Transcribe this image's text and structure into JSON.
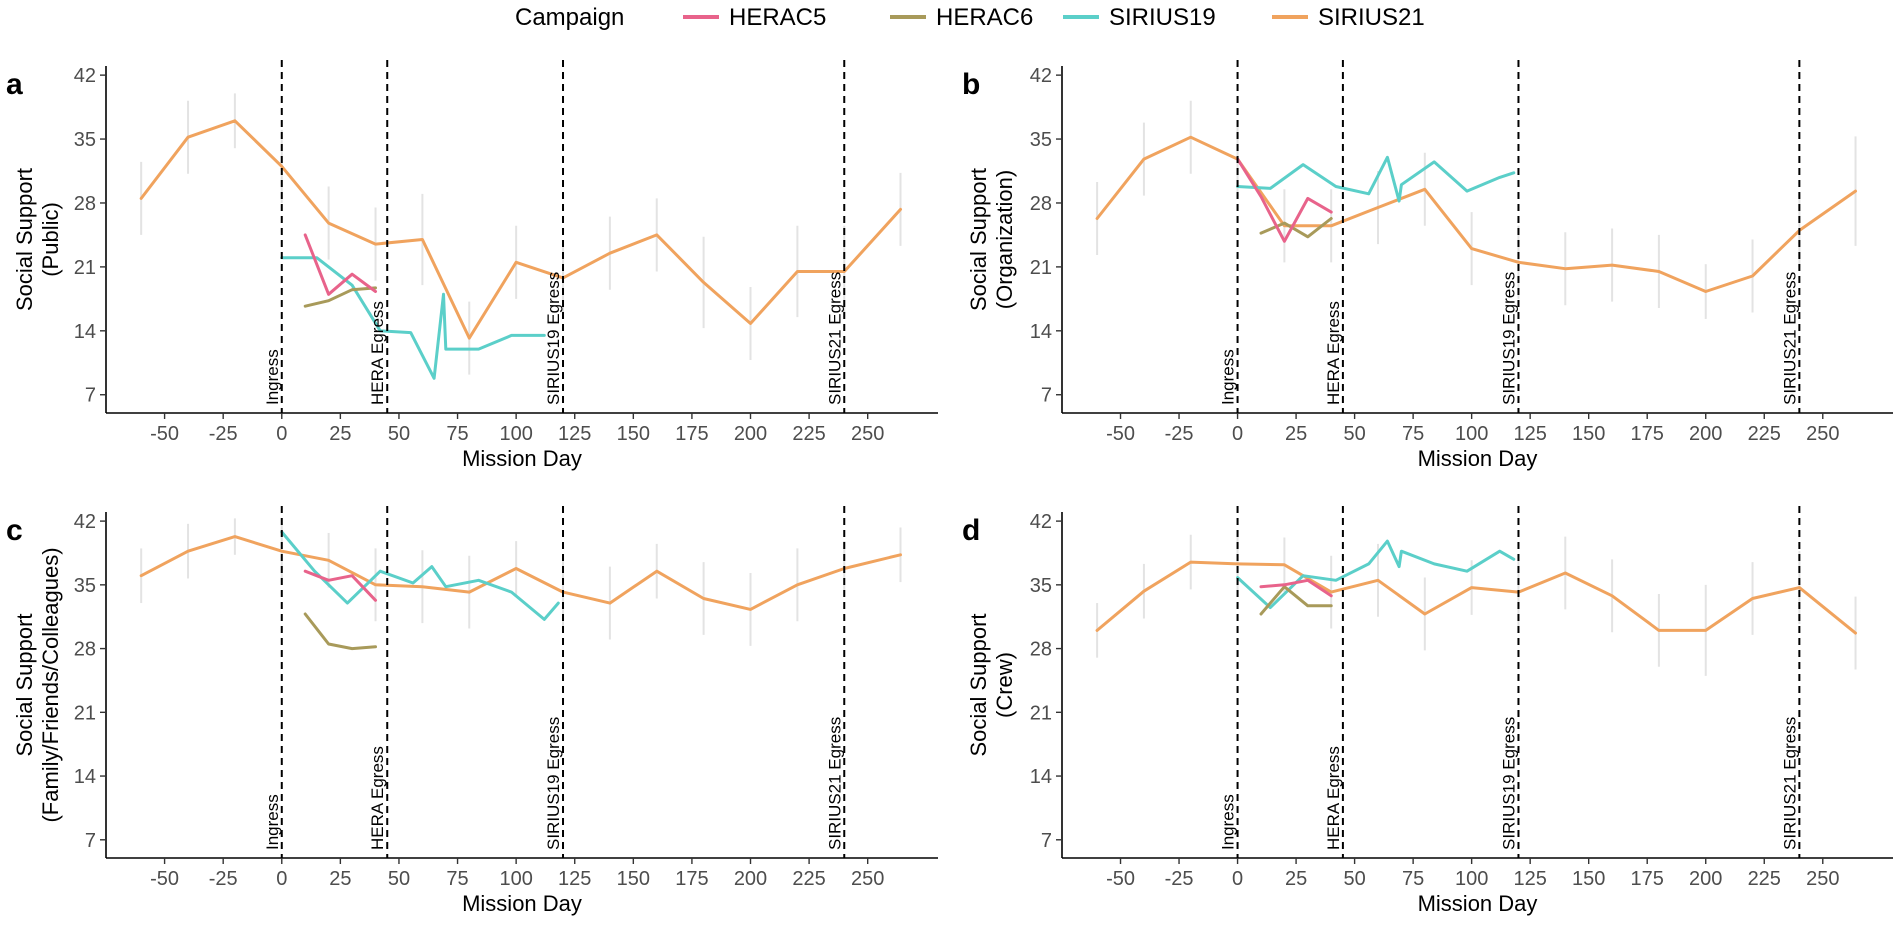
{
  "legend": {
    "title": "Campaign",
    "entries": [
      {
        "name": "HERAC5",
        "color": "#E8638B"
      },
      {
        "name": "HERAC6",
        "color": "#A89A5A"
      },
      {
        "name": "SIRIUS19",
        "color": "#5BCFC9"
      },
      {
        "name": "SIRIUS21",
        "color": "#F0A35E"
      }
    ]
  },
  "chart_data": [
    {
      "type": "line",
      "panel": "a",
      "title": "",
      "xlabel": "Mission Day",
      "ylabel": [
        "Social Support",
        "(Public)"
      ],
      "xlim": [
        -75,
        280
      ],
      "ylim": [
        5,
        43
      ],
      "xticks": [
        -50,
        -25,
        0,
        25,
        50,
        75,
        100,
        125,
        150,
        175,
        200,
        225,
        250
      ],
      "yticks": [
        7,
        14,
        21,
        28,
        35,
        42
      ],
      "vlines": [
        {
          "x": 0,
          "label": "Ingress"
        },
        {
          "x": 45,
          "label": "HERA Egress"
        },
        {
          "x": 120,
          "label": "SIRIUS19 Egress"
        },
        {
          "x": 240,
          "label": "SIRIUS21 Egress"
        }
      ],
      "series": [
        {
          "name": "SIRIUS21",
          "x": [
            -60,
            -40,
            -20,
            0,
            20,
            40,
            60,
            80,
            100,
            120,
            140,
            160,
            180,
            200,
            220,
            240,
            264
          ],
          "y": [
            28.5,
            35.2,
            37,
            32,
            25.8,
            23.5,
            24,
            13.2,
            21.5,
            19.8,
            22.5,
            24.5,
            19.3,
            14.8,
            20.5,
            20.5,
            27.3
          ],
          "err": [
            4,
            4,
            3,
            4,
            4,
            4,
            5,
            4,
            4,
            4,
            4,
            4,
            5,
            4,
            5,
            5,
            4
          ]
        },
        {
          "name": "SIRIUS19",
          "x": [
            0,
            15,
            30,
            42,
            55,
            65,
            69,
            70,
            84,
            98,
            112
          ],
          "y": [
            22,
            22,
            19,
            14,
            13.8,
            8.8,
            18,
            12,
            12,
            13.5,
            13.5
          ],
          "err": []
        },
        {
          "name": "HERAC5",
          "x": [
            10,
            20,
            30,
            40
          ],
          "y": [
            24.5,
            18,
            20.2,
            18.3
          ],
          "err": []
        },
        {
          "name": "HERAC6",
          "x": [
            10,
            20,
            30,
            40
          ],
          "y": [
            16.7,
            17.3,
            18.5,
            18.7
          ],
          "err": []
        }
      ]
    },
    {
      "type": "line",
      "panel": "b",
      "title": "",
      "xlabel": "Mission Day",
      "ylabel": [
        "Social Support",
        "(Organization)"
      ],
      "xlim": [
        -75,
        280
      ],
      "ylim": [
        5,
        43
      ],
      "xticks": [
        -50,
        -25,
        0,
        25,
        50,
        75,
        100,
        125,
        150,
        175,
        200,
        225,
        250
      ],
      "yticks": [
        7,
        14,
        21,
        28,
        35,
        42
      ],
      "vlines": [
        {
          "x": 0,
          "label": "Ingress"
        },
        {
          "x": 45,
          "label": "HERA Egress"
        },
        {
          "x": 120,
          "label": "SIRIUS19 Egress"
        },
        {
          "x": 240,
          "label": "SIRIUS21 Egress"
        }
      ],
      "series": [
        {
          "name": "SIRIUS21",
          "x": [
            -60,
            -40,
            -20,
            0,
            20,
            40,
            60,
            80,
            100,
            120,
            140,
            160,
            180,
            200,
            220,
            240,
            264
          ],
          "y": [
            26.3,
            32.8,
            35.2,
            32.8,
            25.5,
            25.5,
            27.5,
            29.5,
            23,
            21.5,
            20.8,
            21.2,
            20.5,
            18.3,
            20,
            25,
            29.3
          ],
          "err": [
            4,
            4,
            4,
            4,
            4,
            4,
            4,
            4,
            4,
            4,
            4,
            4,
            4,
            3,
            4,
            4,
            6
          ]
        },
        {
          "name": "SIRIUS19",
          "x": [
            0,
            14,
            28,
            42,
            56,
            64,
            69,
            70,
            84,
            98,
            112,
            118
          ],
          "y": [
            29.8,
            29.6,
            32.2,
            29.8,
            29,
            33,
            28.2,
            30,
            32.5,
            29.3,
            30.8,
            31.3
          ],
          "err": []
        },
        {
          "name": "HERAC5",
          "x": [
            0,
            10,
            20,
            30,
            40
          ],
          "y": [
            32.8,
            28.7,
            23.8,
            28.5,
            27
          ],
          "err": []
        },
        {
          "name": "HERAC6",
          "x": [
            10,
            20,
            30,
            40
          ],
          "y": [
            24.7,
            25.8,
            24.3,
            26.3
          ],
          "err": []
        }
      ]
    },
    {
      "type": "line",
      "panel": "c",
      "title": "",
      "xlabel": "Mission Day",
      "ylabel": [
        "Social Support",
        "(Family/Friends/Colleagues)"
      ],
      "xlim": [
        -75,
        280
      ],
      "ylim": [
        5,
        43
      ],
      "xticks": [
        -50,
        -25,
        0,
        25,
        50,
        75,
        100,
        125,
        150,
        175,
        200,
        225,
        250
      ],
      "yticks": [
        7,
        14,
        21,
        28,
        35,
        42
      ],
      "vlines": [
        {
          "x": 0,
          "label": "Ingress"
        },
        {
          "x": 45,
          "label": "HERA Egress"
        },
        {
          "x": 120,
          "label": "SIRIUS19 Egress"
        },
        {
          "x": 240,
          "label": "SIRIUS21 Egress"
        }
      ],
      "series": [
        {
          "name": "SIRIUS21",
          "x": [
            -60,
            -40,
            -20,
            0,
            20,
            40,
            60,
            80,
            100,
            120,
            140,
            160,
            180,
            200,
            220,
            240,
            264
          ],
          "y": [
            36,
            38.7,
            40.3,
            38.7,
            37.7,
            35,
            34.8,
            34.2,
            36.8,
            34.2,
            33,
            36.5,
            33.5,
            32.3,
            35,
            36.8,
            38.3
          ],
          "err": [
            3,
            3,
            2,
            3,
            3,
            4,
            4,
            4,
            3,
            4,
            4,
            3,
            4,
            4,
            4,
            3,
            3
          ]
        },
        {
          "name": "SIRIUS19",
          "x": [
            0,
            14,
            28,
            42,
            56,
            64,
            70,
            84,
            98,
            112,
            118
          ],
          "y": [
            40.8,
            36.5,
            33,
            36.5,
            35.2,
            37,
            34.8,
            35.5,
            34.2,
            31.2,
            33
          ],
          "err": []
        },
        {
          "name": "HERAC5",
          "x": [
            10,
            20,
            30,
            40
          ],
          "y": [
            36.5,
            35.5,
            36,
            33.3
          ],
          "err": []
        },
        {
          "name": "HERAC6",
          "x": [
            10,
            20,
            30,
            40
          ],
          "y": [
            31.8,
            28.5,
            28,
            28.2
          ],
          "err": []
        }
      ]
    },
    {
      "type": "line",
      "panel": "d",
      "title": "",
      "xlabel": "Mission Day",
      "ylabel": [
        "Social Support",
        "(Crew)"
      ],
      "xlim": [
        -75,
        280
      ],
      "ylim": [
        5,
        43
      ],
      "xticks": [
        -50,
        -25,
        0,
        25,
        50,
        75,
        100,
        125,
        150,
        175,
        200,
        225,
        250
      ],
      "yticks": [
        7,
        14,
        21,
        28,
        35,
        42
      ],
      "vlines": [
        {
          "x": 0,
          "label": "Ingress"
        },
        {
          "x": 45,
          "label": "HERA Egress"
        },
        {
          "x": 120,
          "label": "SIRIUS19 Egress"
        },
        {
          "x": 240,
          "label": "SIRIUS21 Egress"
        }
      ],
      "series": [
        {
          "name": "SIRIUS21",
          "x": [
            -60,
            -40,
            -20,
            0,
            20,
            40,
            60,
            80,
            100,
            120,
            140,
            160,
            180,
            200,
            220,
            240,
            264
          ],
          "y": [
            30,
            34.3,
            37.5,
            37.3,
            37.2,
            34.2,
            35.5,
            31.8,
            34.7,
            34.2,
            36.3,
            33.8,
            30,
            30,
            33.5,
            34.7,
            29.7
          ],
          "err": [
            3,
            3,
            3,
            3,
            3,
            4,
            4,
            4,
            3,
            4,
            4,
            4,
            4,
            5,
            4,
            4,
            4
          ]
        },
        {
          "name": "SIRIUS19",
          "x": [
            0,
            14,
            28,
            42,
            56,
            64,
            69,
            70,
            84,
            98,
            112,
            118
          ],
          "y": [
            35.8,
            32.5,
            36,
            35.5,
            37.3,
            39.8,
            37,
            38.7,
            37.3,
            36.5,
            38.7,
            37.8
          ],
          "err": []
        },
        {
          "name": "HERAC5",
          "x": [
            10,
            20,
            30,
            40
          ],
          "y": [
            34.8,
            35,
            35.5,
            33.8
          ],
          "err": []
        },
        {
          "name": "HERAC6",
          "x": [
            10,
            20,
            30,
            40
          ],
          "y": [
            31.8,
            34.8,
            32.7,
            32.7
          ],
          "err": []
        }
      ]
    }
  ]
}
